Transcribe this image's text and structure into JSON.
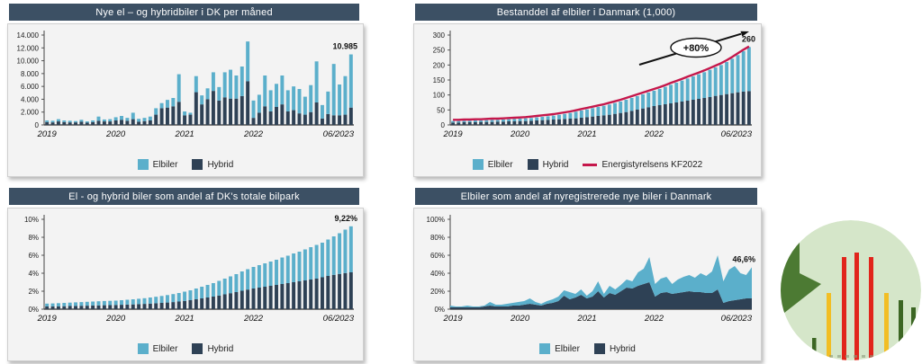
{
  "page": {
    "background": "#FFFFFF"
  },
  "colors": {
    "titlebar": "#3C5064",
    "elbiler": "#5BAFCB",
    "hybrid": "#2E4155",
    "kf2022_line": "#C5174B",
    "axis": "#444444",
    "panel_bg": "#F3F3F3"
  },
  "chart_data": [
    {
      "type": "bar",
      "title": "Nye el – og hybridbiler i DK per måned",
      "xlabel": "",
      "ylabel": "",
      "ylim": [
        0,
        14000
      ],
      "ytick_values": [
        0,
        2000,
        4000,
        6000,
        8000,
        10000,
        12000,
        14000
      ],
      "ytick_labels": [
        "0",
        "2.000",
        "4.000",
        "6.000",
        "8.000",
        "10.000",
        "12.000",
        "14.000"
      ],
      "xtick_positions": [
        0,
        12,
        24,
        36,
        53
      ],
      "xtick_labels": [
        "2019",
        "2020",
        "2021",
        "2022",
        "06/2023"
      ],
      "annotations": {
        "value_label": "10.985"
      },
      "legend": [
        {
          "label": "Elbiler",
          "color": "#5BAFCB",
          "shape": "square"
        },
        {
          "label": "Hybrid",
          "color": "#2E4155",
          "shape": "square"
        }
      ],
      "series": [
        {
          "name": "Hybrid",
          "color": "#2E4155",
          "values": [
            450,
            400,
            550,
            450,
            400,
            400,
            500,
            350,
            450,
            650,
            550,
            550,
            700,
            800,
            650,
            900,
            500,
            600,
            700,
            1600,
            2600,
            2700,
            2900,
            3600,
            1500,
            1600,
            5100,
            3200,
            4000,
            5300,
            3800,
            4300,
            4100,
            4100,
            4500,
            6800,
            1100,
            1900,
            2900,
            2100,
            2800,
            3200,
            2100,
            2300,
            1800,
            1600,
            2000,
            3500,
            1000,
            1700,
            1500,
            1500,
            1600,
            2700
          ]
        },
        {
          "name": "Elbiler",
          "color": "#5BAFCB",
          "values": [
            250,
            250,
            350,
            250,
            250,
            200,
            300,
            200,
            250,
            650,
            300,
            350,
            500,
            600,
            450,
            1000,
            450,
            500,
            600,
            1000,
            800,
            1200,
            1300,
            4300,
            600,
            300,
            2500,
            1400,
            1700,
            2900,
            2100,
            3900,
            4500,
            3600,
            4600,
            6200,
            2700,
            2800,
            4800,
            3300,
            3600,
            4500,
            3300,
            3700,
            3800,
            2800,
            4200,
            6400,
            2100,
            3500,
            8000,
            4800,
            6000,
            8285
          ]
        }
      ]
    },
    {
      "type": "bar",
      "title": "Bestanddel af elbiler i Danmark (1,000)",
      "xlabel": "",
      "ylabel": "",
      "ylim": [
        0,
        300
      ],
      "ytick_values": [
        0,
        50,
        100,
        150,
        200,
        250,
        300
      ],
      "ytick_labels": [
        "0",
        "50",
        "100",
        "150",
        "200",
        "250",
        "300"
      ],
      "xtick_positions": [
        0,
        12,
        24,
        36,
        53
      ],
      "xtick_labels": [
        "2019",
        "2020",
        "2021",
        "2022",
        "06/2023"
      ],
      "annotations": {
        "growth_label": "+80%",
        "value_label": "260"
      },
      "legend": [
        {
          "label": "Elbiler",
          "color": "#5BAFCB",
          "shape": "square"
        },
        {
          "label": "Hybrid",
          "color": "#2E4155",
          "shape": "square"
        },
        {
          "label": "Energistyrelsens KF2022",
          "color": "#C5174B",
          "shape": "line"
        }
      ],
      "series": [
        {
          "name": "Hybrid",
          "color": "#2E4155",
          "values": [
            8,
            8,
            9,
            9,
            9,
            10,
            10,
            10,
            11,
            11,
            12,
            12,
            13,
            13,
            14,
            15,
            16,
            17,
            18,
            19,
            20,
            21,
            22,
            24,
            26,
            28,
            30,
            32,
            34,
            37,
            40,
            43,
            47,
            51,
            55,
            59,
            63,
            66,
            69,
            72,
            75,
            78,
            81,
            84,
            87,
            90,
            93,
            97,
            100,
            103,
            106,
            109,
            111,
            113
          ]
        },
        {
          "name": "Elbiler",
          "color": "#5BAFCB",
          "values": [
            5,
            5,
            5,
            5,
            6,
            5,
            6,
            7,
            6,
            7,
            7,
            8,
            8,
            9,
            9,
            10,
            11,
            12,
            13,
            15,
            17,
            19,
            22,
            24,
            26,
            28,
            30,
            32,
            34,
            36,
            38,
            41,
            43,
            45,
            47,
            49,
            51,
            54,
            58,
            62,
            66,
            70,
            74,
            78,
            82,
            86,
            91,
            95,
            100,
            107,
            115,
            124,
            135,
            147
          ]
        },
        {
          "name": "Energistyrelsens KF2022",
          "type": "line",
          "color": "#C5174B",
          "values": [
            17,
            17,
            18,
            18,
            19,
            19,
            20,
            21,
            21,
            22,
            23,
            24,
            25,
            26,
            28,
            30,
            32,
            34,
            36,
            39,
            42,
            45,
            49,
            53,
            57,
            61,
            65,
            69,
            74,
            79,
            84,
            90,
            96,
            102,
            108,
            114,
            120,
            126,
            133,
            140,
            147,
            154,
            161,
            168,
            175,
            182,
            190,
            198,
            206,
            216,
            227,
            239,
            251,
            262
          ]
        }
      ]
    },
    {
      "type": "bar",
      "title": "El - og hybrid biler som andel af DK's totale bilpark",
      "xlabel": "",
      "ylabel": "",
      "ylim": [
        0,
        10
      ],
      "ytick_values": [
        0,
        2,
        4,
        6,
        8,
        10
      ],
      "ytick_labels": [
        "0%",
        "2%",
        "4%",
        "6%",
        "8%",
        "10%"
      ],
      "xtick_positions": [
        0,
        12,
        24,
        36,
        53
      ],
      "xtick_labels": [
        "2019",
        "2020",
        "2021",
        "2022",
        "06/2023"
      ],
      "annotations": {
        "value_label": "9,22%"
      },
      "legend": [
        {
          "label": "Elbiler",
          "color": "#5BAFCB",
          "shape": "square"
        },
        {
          "label": "Hybrid",
          "color": "#2E4155",
          "shape": "square"
        }
      ],
      "series": [
        {
          "name": "Hybrid",
          "color": "#2E4155",
          "values": [
            0.3,
            0.31,
            0.32,
            0.33,
            0.35,
            0.36,
            0.38,
            0.39,
            0.41,
            0.42,
            0.44,
            0.45,
            0.47,
            0.49,
            0.51,
            0.53,
            0.56,
            0.59,
            0.62,
            0.66,
            0.7,
            0.74,
            0.79,
            0.85,
            0.92,
            1.0,
            1.1,
            1.2,
            1.3,
            1.4,
            1.52,
            1.65,
            1.78,
            1.9,
            2.05,
            2.18,
            2.3,
            2.4,
            2.5,
            2.6,
            2.7,
            2.8,
            2.9,
            3.0,
            3.1,
            3.2,
            3.3,
            3.4,
            3.55,
            3.7,
            3.82,
            3.92,
            4.02,
            4.1
          ]
        },
        {
          "name": "Elbiler",
          "color": "#5BAFCB",
          "values": [
            0.32,
            0.33,
            0.35,
            0.37,
            0.38,
            0.4,
            0.41,
            0.43,
            0.44,
            0.46,
            0.47,
            0.48,
            0.48,
            0.51,
            0.54,
            0.57,
            0.6,
            0.63,
            0.68,
            0.72,
            0.77,
            0.83,
            0.89,
            0.95,
            1.03,
            1.1,
            1.2,
            1.3,
            1.4,
            1.5,
            1.63,
            1.75,
            1.87,
            2.0,
            2.15,
            2.27,
            2.4,
            2.5,
            2.6,
            2.7,
            2.8,
            2.95,
            3.05,
            3.2,
            3.3,
            3.45,
            3.6,
            3.75,
            3.85,
            4.05,
            4.28,
            4.53,
            4.83,
            5.12
          ]
        }
      ]
    },
    {
      "type": "area",
      "title": "Elbiler som andel af nyregistrerede nye biler i Danmark",
      "xlabel": "",
      "ylabel": "",
      "ylim": [
        0,
        100
      ],
      "ytick_values": [
        0,
        20,
        40,
        60,
        80,
        100
      ],
      "ytick_labels": [
        "0%",
        "20%",
        "40%",
        "60%",
        "80%",
        "100%"
      ],
      "xtick_positions": [
        0,
        12,
        24,
        36,
        53
      ],
      "xtick_labels": [
        "2019",
        "2020",
        "2021",
        "2022",
        "06/2023"
      ],
      "annotations": {
        "value_label": "46,6%"
      },
      "legend": [
        {
          "label": "Elbiler",
          "color": "#5BAFCB",
          "shape": "square"
        },
        {
          "label": "Hybrid",
          "color": "#2E4155",
          "shape": "square"
        }
      ],
      "series": [
        {
          "name": "Hybrid",
          "color": "#2E4155",
          "values": [
            2,
            2,
            2,
            2,
            2,
            2,
            3,
            4,
            3,
            3,
            3,
            4,
            4,
            5,
            6,
            5,
            4,
            6,
            7,
            9,
            15,
            11,
            13,
            16,
            12,
            14,
            20,
            13,
            18,
            16,
            20,
            24,
            23,
            26,
            28,
            30,
            14,
            18,
            19,
            17,
            18,
            19,
            20,
            19,
            19,
            18,
            18,
            22,
            7,
            9,
            10,
            11,
            12,
            12
          ]
        },
        {
          "name": "Elbiler",
          "color": "#5BAFCB",
          "values": [
            2,
            1,
            1,
            2,
            1,
            1,
            1,
            4,
            2,
            2,
            3,
            3,
            4,
            4,
            6,
            3,
            2,
            3,
            4,
            5,
            6,
            8,
            4,
            6,
            3,
            6,
            11,
            4,
            8,
            6,
            7,
            9,
            8,
            15,
            17,
            28,
            14,
            16,
            17,
            11,
            15,
            17,
            18,
            16,
            21,
            19,
            24,
            38,
            24,
            35,
            38,
            29,
            26,
            34.6
          ]
        }
      ]
    }
  ],
  "logo": {
    "colors": {
      "circle_bg": "#D5E6C9",
      "arrow_green": "#4C7A33",
      "bar_red": "#E1251B",
      "bar_yellow": "#F2BE24",
      "bar_dark_green": "#3C6623",
      "axis_marks": "#8A9A7A"
    }
  }
}
